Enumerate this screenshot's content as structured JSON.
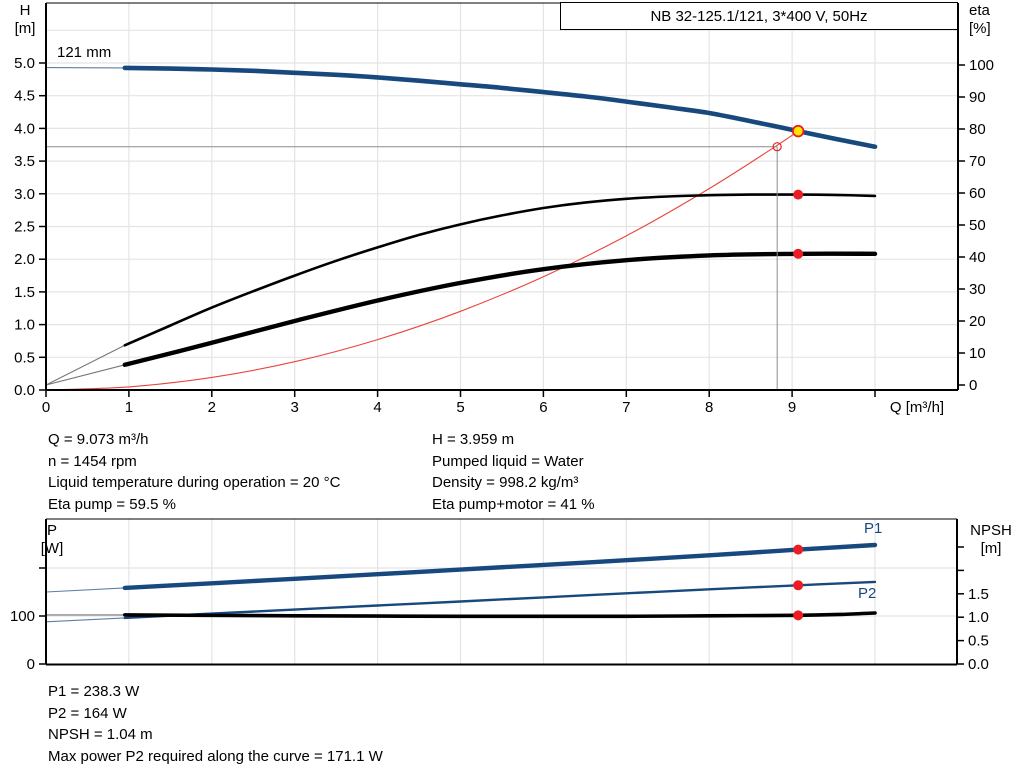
{
  "colors": {
    "curve_blue": "#17497E",
    "curve_black": "#000000",
    "curve_red": "#E8453C",
    "dot_red": "#EC1C24",
    "duty_yellow": "#FFE600",
    "grid": "#E4E4E4",
    "crosshair": "#8C8C8C",
    "thin_gray": "#777777",
    "thin_blue": "#5E7FA4"
  },
  "chart_data": [
    {
      "name": "performance",
      "type": "line",
      "title": "NB 32-125.1/121, 3*400 V, 50Hz",
      "impeller_label": "121 mm",
      "x_axis": {
        "label": "Q [m³/h]",
        "min": 0,
        "max": 11,
        "tick_values": [
          0,
          1,
          2,
          3,
          4,
          5,
          6,
          7,
          8,
          9,
          10
        ],
        "tick_labels": [
          "0",
          "1",
          "2",
          "3",
          "4",
          "5",
          "6",
          "7",
          "8",
          "9",
          ""
        ]
      },
      "y_left": {
        "name": "H",
        "unit": "[m]",
        "min": 0,
        "max": 5.9,
        "tick_values": [
          0,
          0.5,
          1,
          1.5,
          2,
          2.5,
          3,
          3.5,
          4,
          4.5,
          5
        ],
        "tick_labels": [
          "0.0",
          "0.5",
          "1.0",
          "1.5",
          "2.0",
          "2.5",
          "3.0",
          "3.5",
          "4.0",
          "4.5",
          "5.0"
        ]
      },
      "y_right": {
        "name": "eta",
        "unit": "[%]",
        "min": 0,
        "max": 119,
        "tick_values": [
          0,
          10,
          20,
          30,
          40,
          50,
          60,
          70,
          80,
          90,
          100
        ],
        "tick_labels": [
          "0",
          "10",
          "20",
          "30",
          "40",
          "50",
          "60",
          "70",
          "80",
          "90",
          "100"
        ]
      },
      "crosshair": {
        "q": 8.82,
        "h": 3.72
      },
      "series": [
        {
          "name": "system-curve",
          "axis": "left",
          "color": "curve_red",
          "width": 1.1,
          "points": [
            [
              0,
              0
            ],
            [
              1,
              0.048
            ],
            [
              2,
              0.192
            ],
            [
              3,
              0.433
            ],
            [
              4,
              0.77
            ],
            [
              5,
              1.203
            ],
            [
              6,
              1.732
            ],
            [
              7,
              2.357
            ],
            [
              8,
              3.079
            ],
            [
              8.82,
              3.742
            ],
            [
              9.073,
              3.959
            ]
          ]
        },
        {
          "name": "eta-pump-curve",
          "axis": "right",
          "color": "curve_black",
          "thin_color": "thin_gray",
          "width": 2.6,
          "thin_points": [
            [
              0,
              0
            ],
            [
              0.95,
              12.4
            ]
          ],
          "points": [
            [
              0.95,
              12.4
            ],
            [
              1.5,
              18.6
            ],
            [
              2,
              24.2
            ],
            [
              2.5,
              29.3
            ],
            [
              3,
              34.2
            ],
            [
              3.5,
              38.8
            ],
            [
              4,
              43
            ],
            [
              4.5,
              46.9
            ],
            [
              5,
              50.2
            ],
            [
              5.5,
              53
            ],
            [
              6,
              55.3
            ],
            [
              6.5,
              57
            ],
            [
              7,
              58.2
            ],
            [
              7.5,
              58.9
            ],
            [
              8,
              59.3
            ],
            [
              8.5,
              59.5
            ],
            [
              9.073,
              59.5
            ],
            [
              9.5,
              59.4
            ],
            [
              10,
              59.1
            ]
          ]
        },
        {
          "name": "eta-pump-motor-curve",
          "axis": "right",
          "color": "curve_black",
          "thin_color": "thin_gray",
          "width": 4.4,
          "thin_points": [
            [
              0,
              0
            ],
            [
              0.95,
              6.3
            ]
          ],
          "points": [
            [
              0.95,
              6.3
            ],
            [
              2,
              13.2
            ],
            [
              3,
              20
            ],
            [
              4,
              26.4
            ],
            [
              5,
              31.9
            ],
            [
              6,
              36.2
            ],
            [
              7,
              39
            ],
            [
              8,
              40.5
            ],
            [
              9.073,
              41
            ],
            [
              10,
              41
            ]
          ]
        },
        {
          "name": "head-curve",
          "axis": "left",
          "color": "curve_blue",
          "thin_color": "thin_blue",
          "width": 4.6,
          "thin_points": [
            [
              0,
              4.93
            ],
            [
              0.95,
              4.925
            ]
          ],
          "points": [
            [
              0.95,
              4.925
            ],
            [
              1.5,
              4.915
            ],
            [
              2,
              4.9
            ],
            [
              2.5,
              4.88
            ],
            [
              3,
              4.85
            ],
            [
              3.5,
              4.82
            ],
            [
              4,
              4.78
            ],
            [
              4.5,
              4.73
            ],
            [
              5,
              4.675
            ],
            [
              5.5,
              4.62
            ],
            [
              6,
              4.555
            ],
            [
              6.5,
              4.49
            ],
            [
              7,
              4.41
            ],
            [
              7.5,
              4.325
            ],
            [
              8,
              4.235
            ],
            [
              8.5,
              4.11
            ],
            [
              9.073,
              3.959
            ],
            [
              9.5,
              3.845
            ],
            [
              10,
              3.72
            ]
          ]
        }
      ],
      "markers": [
        {
          "name": "requested-duty-point",
          "kind": "open",
          "axis": "left",
          "x": 8.82,
          "y": 3.72
        },
        {
          "name": "eta-pump-duty-dot",
          "kind": "dot",
          "axis": "right",
          "x": 9.073,
          "y": 59.5
        },
        {
          "name": "eta-pump-motor-duty-dot",
          "kind": "dot",
          "axis": "right",
          "x": 9.073,
          "y": 41
        },
        {
          "name": "duty-point",
          "kind": "duty",
          "axis": "left",
          "x": 9.073,
          "y": 3.959
        }
      ]
    },
    {
      "name": "power-npsh",
      "type": "line",
      "title": "",
      "x_axis": {
        "label": "",
        "min": 0,
        "max": 11,
        "tick_values": [],
        "tick_labels": []
      },
      "y_left": {
        "name": "P",
        "unit": "[W]",
        "min": 0,
        "max": 300,
        "tick_values": [
          0,
          100,
          200
        ],
        "tick_labels": [
          "0",
          "100",
          ""
        ]
      },
      "y_right": {
        "name": "NPSH",
        "unit": "[m]",
        "min": 0,
        "max": 3.1,
        "tick_values": [
          0,
          0.5,
          1,
          1.5,
          2,
          2.5
        ],
        "tick_labels": [
          "0.0",
          "0.5",
          "1.0",
          "1.5",
          "",
          ""
        ]
      },
      "crosshair": null,
      "series": [
        {
          "name": "p1-curve",
          "label": "P1",
          "axis": "left",
          "color": "curve_blue",
          "thin_color": "thin_blue",
          "width": 4.4,
          "thin_points": [
            [
              0,
              150
            ],
            [
              0.95,
              158.6
            ]
          ],
          "points": [
            [
              0.95,
              158.6
            ],
            [
              2,
              168.2
            ],
            [
              3,
              177.6
            ],
            [
              4,
              187.1
            ],
            [
              5,
              196.7
            ],
            [
              6,
              206.4
            ],
            [
              7,
              216.3
            ],
            [
              8,
              226.4
            ],
            [
              9.073,
              238.3
            ],
            [
              10,
              248
            ]
          ]
        },
        {
          "name": "p2-curve",
          "label": "P2",
          "axis": "left",
          "color": "curve_blue",
          "thin_color": "thin_blue",
          "width": 2.4,
          "thin_points": [
            [
              0,
              88
            ],
            [
              0.95,
              96.1
            ]
          ],
          "points": [
            [
              0.95,
              96.1
            ],
            [
              2,
              105
            ],
            [
              3,
              113.4
            ],
            [
              4,
              121.9
            ],
            [
              5,
              130.3
            ],
            [
              6,
              138.8
            ],
            [
              7,
              147.2
            ],
            [
              8,
              155.6
            ],
            [
              9.073,
              164
            ],
            [
              10,
              171.1
            ]
          ]
        },
        {
          "name": "npsh-curve",
          "axis": "right",
          "color": "curve_black",
          "thin_color": "thin_gray",
          "width": 3.6,
          "thin_points": [
            [
              0,
              1.05
            ],
            [
              0.95,
              1.05
            ]
          ],
          "points": [
            [
              0.95,
              1.05
            ],
            [
              3,
              1.03
            ],
            [
              5,
              1.02
            ],
            [
              7,
              1.02
            ],
            [
              8,
              1.03
            ],
            [
              9.073,
              1.04
            ],
            [
              9.6,
              1.06
            ],
            [
              10,
              1.09
            ]
          ]
        }
      ],
      "markers": [
        {
          "name": "p1-duty-dot",
          "kind": "dot",
          "axis": "left",
          "x": 9.073,
          "y": 238.3
        },
        {
          "name": "p2-duty-dot",
          "kind": "dot",
          "axis": "left",
          "x": 9.073,
          "y": 164
        },
        {
          "name": "npsh-duty-dot",
          "kind": "dot",
          "axis": "right",
          "x": 9.073,
          "y": 1.04
        }
      ]
    }
  ],
  "duty_info_left": [
    "Q = 9.073 m³/h",
    "n = 1454 rpm",
    "Liquid temperature during operation = 20 °C",
    "Eta pump = 59.5 %"
  ],
  "duty_info_right": [
    "H = 3.959 m",
    "Pumped liquid = Water",
    "Density = 998.2 kg/m³",
    "Eta pump+motor = 41 %"
  ],
  "power_info": [
    "P1 = 238.3 W",
    "P2 = 164 W",
    "NPSH = 1.04 m",
    "Max power P2 required along the curve = 171.1 W"
  ]
}
